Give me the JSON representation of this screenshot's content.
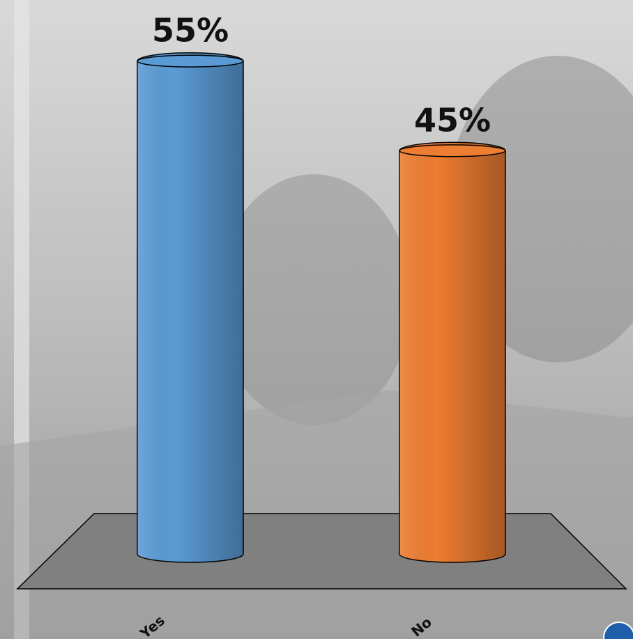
{
  "chart_data": {
    "type": "bar",
    "categories": [
      "Yes",
      "No"
    ],
    "values": [
      55,
      45
    ],
    "value_labels": [
      "55%",
      "45%"
    ],
    "colors": [
      "#5b9bd5",
      "#ed7d31"
    ]
  }
}
